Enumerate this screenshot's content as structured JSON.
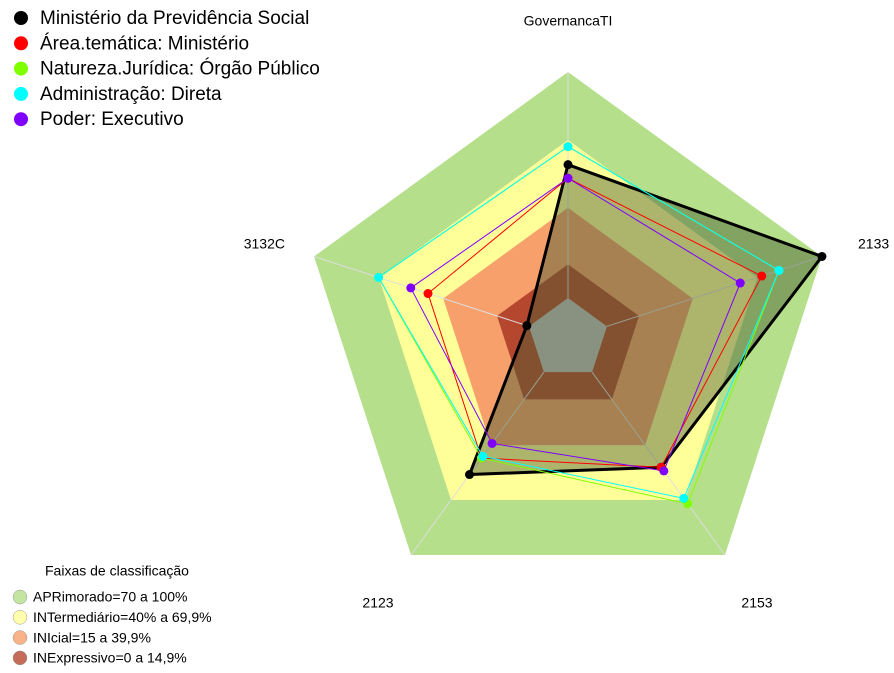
{
  "chart_data": {
    "type": "radar",
    "axes": [
      "GovernancaTI",
      "2133",
      "2153",
      "2123",
      "3132C"
    ],
    "rlim": [
      0,
      100
    ],
    "series": [
      {
        "name": "Ministério da Previdência Social",
        "color": "#000000",
        "values": [
          59,
          100,
          52,
          56,
          1
        ]
      },
      {
        "name": "Área.temática: Ministério",
        "color": "#ff0000",
        "values": [
          53,
          72,
          52,
          47,
          47
        ]
      },
      {
        "name": "Natureza.Jurídica: Órgão Público",
        "color": "#80ff00",
        "values": [
          67,
          80,
          72,
          47,
          70
        ]
      },
      {
        "name": "Administração: Direta",
        "color": "#00ffff",
        "values": [
          67,
          80,
          69,
          46,
          70
        ]
      },
      {
        "name": "Poder: Executivo",
        "color": "#8000ff",
        "values": [
          53,
          62,
          54,
          39,
          55
        ]
      }
    ],
    "bands_title": "Faixas de classificação",
    "bands": [
      {
        "label": "APRimorado=70 a 100%",
        "from": 70,
        "to": 100,
        "color": "#b5df8a"
      },
      {
        "label": "INTermediário=40% a 69,9%",
        "from": 40,
        "to": 69.9,
        "color": "#ffff99"
      },
      {
        "label": "INIcial=15 a 39,9%",
        "from": 15,
        "to": 39.9,
        "color": "#f7a06c"
      },
      {
        "label": "INExpressivo=0 a 14,9%",
        "from": 0,
        "to": 14.9,
        "color": "#b5472f"
      }
    ]
  }
}
